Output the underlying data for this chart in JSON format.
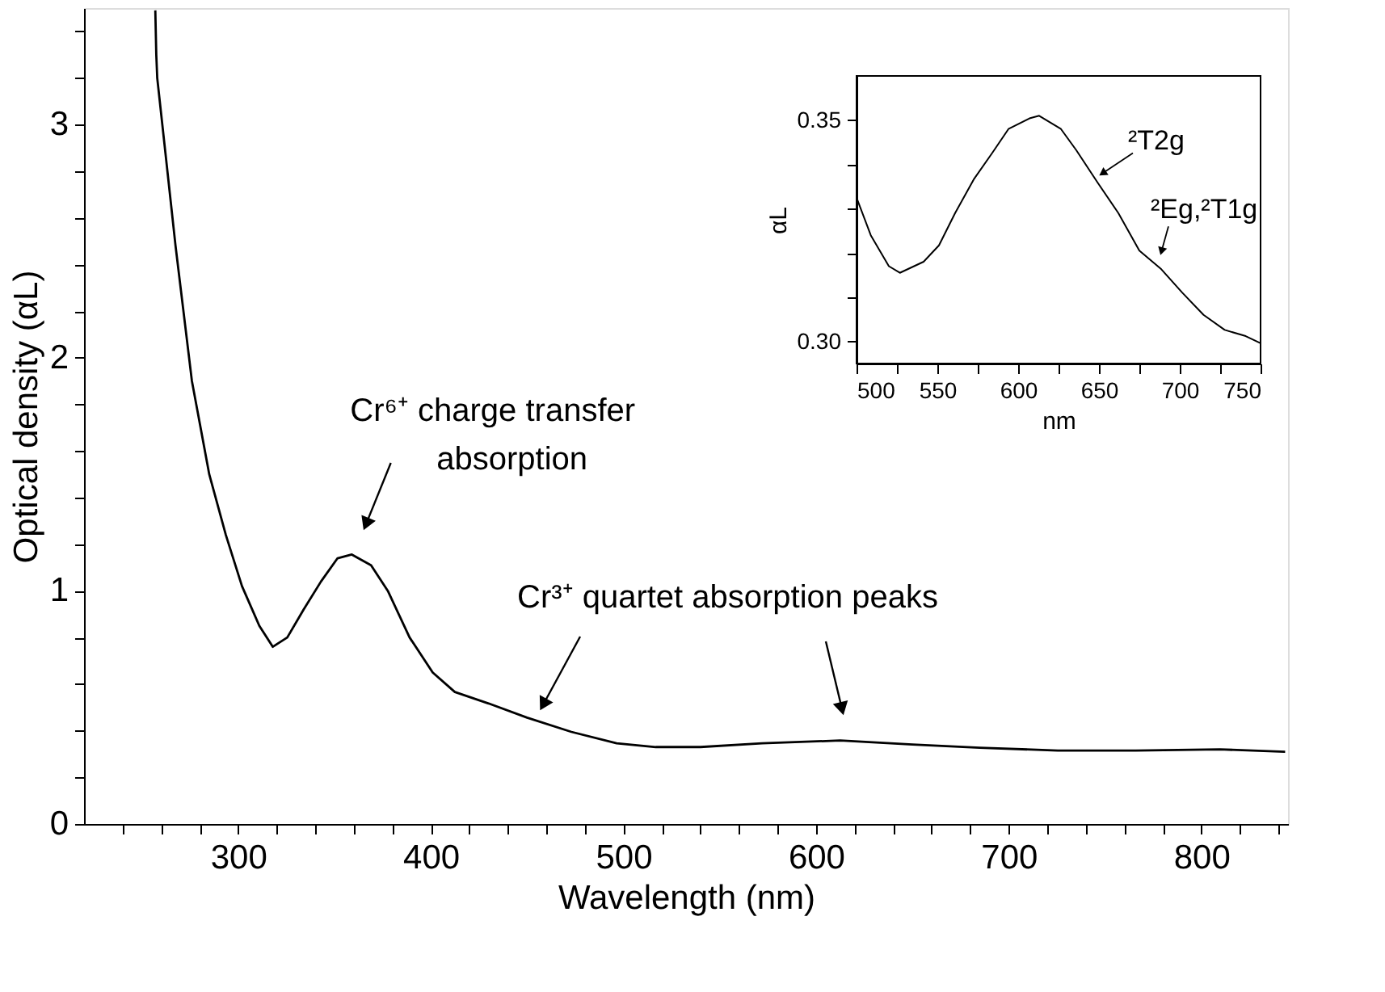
{
  "chart_data": [
    {
      "type": "line",
      "xlabel": "Wavelength (nm)",
      "ylabel": "Optical density (αL)",
      "xlim": [
        220,
        845
      ],
      "ylim": [
        0,
        3.5
      ],
      "xticks": [
        {
          "value": 240,
          "label": null
        },
        {
          "value": 260,
          "label": null
        },
        {
          "value": 280,
          "label": null
        },
        300,
        {
          "value": 320,
          "label": null
        },
        {
          "value": 340,
          "label": null
        },
        {
          "value": 360,
          "label": null
        },
        {
          "value": 380,
          "label": null
        },
        400,
        {
          "value": 420,
          "label": null
        },
        {
          "value": 440,
          "label": null
        },
        {
          "value": 460,
          "label": null
        },
        {
          "value": 480,
          "label": null
        },
        500,
        {
          "value": 520,
          "label": null
        },
        {
          "value": 540,
          "label": null
        },
        {
          "value": 560,
          "label": null
        },
        {
          "value": 580,
          "label": null
        },
        600,
        {
          "value": 620,
          "label": null
        },
        {
          "value": 640,
          "label": null
        },
        {
          "value": 660,
          "label": null
        },
        {
          "value": 680,
          "label": null
        },
        700,
        {
          "value": 720,
          "label": null
        },
        {
          "value": 740,
          "label": null
        },
        {
          "value": 760,
          "label": null
        },
        {
          "value": 780,
          "label": null
        },
        800,
        {
          "value": 820,
          "label": null
        },
        {
          "value": 840,
          "label": null
        }
      ],
      "yticks": [
        0,
        {
          "value": 0.2,
          "label": null
        },
        {
          "value": 0.4,
          "label": null
        },
        {
          "value": 0.6,
          "label": null
        },
        {
          "value": 0.8,
          "label": null
        },
        1,
        {
          "value": 1.2,
          "label": null
        },
        {
          "value": 1.4,
          "label": null
        },
        {
          "value": 1.6,
          "label": null
        },
        {
          "value": 1.8,
          "label": null
        },
        2,
        {
          "value": 2.2,
          "label": null
        },
        {
          "value": 2.4,
          "label": null
        },
        {
          "value": 2.6,
          "label": null
        },
        {
          "value": 2.8,
          "label": null
        },
        3,
        {
          "value": 3.2,
          "label": null
        },
        {
          "value": 3.4,
          "label": null
        }
      ],
      "grid": false,
      "marker": "none",
      "line_style": "solid",
      "series": [
        {
          "color": "#000000",
          "x": [
            257,
            257.5,
            258,
            261.7,
            267.5,
            276,
            285,
            293.6,
            302,
            311,
            318,
            325.5,
            334,
            343,
            351.6,
            359,
            369,
            377.7,
            389,
            401,
            412.5,
            430,
            450,
            473,
            496.5,
            516.8,
            534,
            540,
            572,
            612.5,
            650,
            685,
            725.5,
            766,
            809.6,
            843.5
          ],
          "values": [
            3.49,
            3.3,
            3.2,
            2.92,
            2.48,
            1.9,
            1.5,
            1.24,
            1.02,
            0.85,
            0.76,
            0.8,
            0.92,
            1.04,
            1.14,
            1.156,
            1.11,
            1.0,
            0.8,
            0.65,
            0.566,
            0.517,
            0.456,
            0.395,
            0.346,
            0.33,
            0.33,
            0.33,
            0.346,
            0.358,
            0.341,
            0.327,
            0.315,
            0.315,
            0.32,
            0.31
          ]
        }
      ],
      "annotations": [
        {
          "text": "Cr⁶⁺ charge transfer\nabsorption",
          "x": 365,
          "y": 1.14
        },
        "Cr³⁺ quartet absorption peaks"
      ]
    },
    {
      "type": "line",
      "xlabel": "nm",
      "ylabel": "αL",
      "xlim": [
        500,
        750
      ],
      "ylim": [
        0.295,
        0.36
      ],
      "xticks": [
        500,
        {
          "value": 525,
          "label": null
        },
        550,
        {
          "value": 575,
          "label": null
        },
        600,
        {
          "value": 625,
          "label": null
        },
        650,
        {
          "value": 675,
          "label": null
        },
        700,
        {
          "value": 725,
          "label": null
        },
        750
      ],
      "yticks": [
        {
          "value": 0.3,
          "label": "0.30"
        },
        {
          "value": 0.31,
          "label": null
        },
        {
          "value": 0.32,
          "label": null
        },
        {
          "value": 0.33,
          "label": null
        },
        {
          "value": 0.34,
          "label": null
        },
        0.35
      ],
      "grid": false,
      "marker": "none",
      "line_style": "solid",
      "series": [
        {
          "color": "#000000",
          "x": [
            500,
            508.8,
            520,
            526.8,
            541.5,
            551,
            561,
            572.5,
            584,
            594,
            607,
            613,
            626.5,
            636,
            649,
            662,
            675,
            688.6,
            701.6,
            714.7,
            727.8,
            740.8,
            750
          ],
          "values": [
            0.3325,
            0.324,
            0.317,
            0.3155,
            0.318,
            0.3217,
            0.329,
            0.3366,
            0.3426,
            0.348,
            0.3504,
            0.351,
            0.348,
            0.3432,
            0.336,
            0.329,
            0.3205,
            0.3163,
            0.311,
            0.306,
            0.3026,
            0.3012,
            0.2996
          ]
        }
      ],
      "annotations": [
        {
          "text": "²T2g",
          "x": 650,
          "y": 0.336
        },
        {
          "text": "²Eg,²T1g",
          "x": 688,
          "y": 0.3165
        }
      ]
    }
  ]
}
